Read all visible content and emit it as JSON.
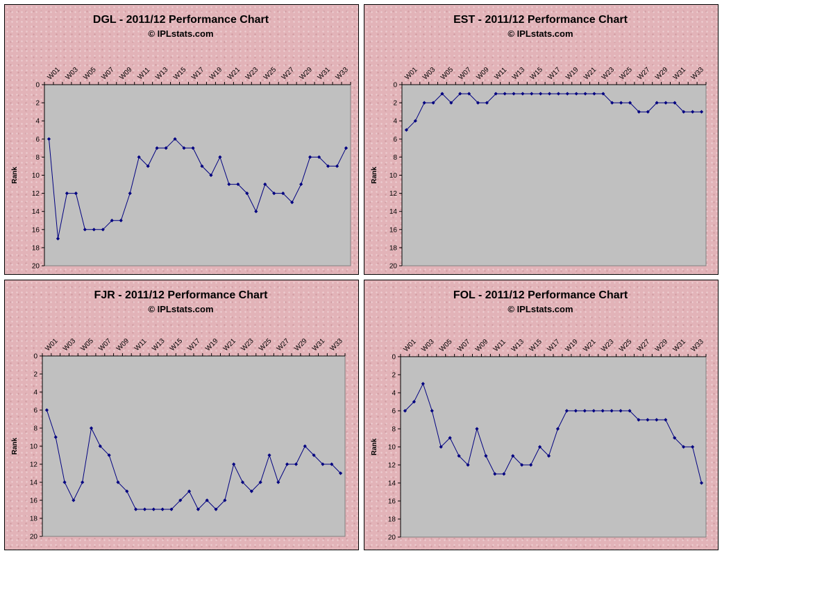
{
  "chart_data": [
    {
      "type": "line",
      "title": "DGL  - 2011/12 Performance Chart",
      "subtitle": "© IPLstats.com",
      "ylabel": "Rank",
      "xlabel": "",
      "ylim": [
        0,
        20
      ],
      "y_reversed": true,
      "yticks": [
        "0",
        "2",
        "4",
        "6",
        "8",
        "10",
        "12",
        "14",
        "16",
        "18",
        "20"
      ],
      "x_tick_labels": [
        "W01",
        "W03",
        "W05",
        "W07",
        "W09",
        "W11",
        "W13",
        "W15",
        "W17",
        "W19",
        "W21",
        "W23",
        "W25",
        "W27",
        "W29",
        "W31",
        "W33"
      ],
      "x_axis_position": "top",
      "line_color": "#000080",
      "plot_area_color": "#c0c0c0",
      "values": [
        6,
        17,
        12,
        12,
        16,
        16,
        16,
        15,
        15,
        12,
        8,
        9,
        7,
        7,
        6,
        7,
        7,
        9,
        10,
        8,
        11,
        11,
        12,
        14,
        11,
        12,
        12,
        13,
        11,
        8,
        8,
        9,
        9,
        7
      ]
    },
    {
      "type": "line",
      "title": "EST  - 2011/12 Performance Chart",
      "subtitle": "© IPLstats.com",
      "ylabel": "Rank",
      "xlabel": "",
      "ylim": [
        0,
        20
      ],
      "y_reversed": true,
      "yticks": [
        "0",
        "2",
        "4",
        "6",
        "8",
        "10",
        "12",
        "14",
        "16",
        "18",
        "20"
      ],
      "x_tick_labels": [
        "W01",
        "W03",
        "W05",
        "W07",
        "W09",
        "W11",
        "W13",
        "W15",
        "W17",
        "W19",
        "W21",
        "W23",
        "W25",
        "W27",
        "W29",
        "W31",
        "W33"
      ],
      "x_axis_position": "top",
      "line_color": "#000080",
      "plot_area_color": "#c0c0c0",
      "values": [
        5,
        4,
        2,
        2,
        1,
        2,
        1,
        1,
        2,
        2,
        1,
        1,
        1,
        1,
        1,
        1,
        1,
        1,
        1,
        1,
        1,
        1,
        1,
        2,
        2,
        2,
        3,
        3,
        2,
        2,
        2,
        3,
        3,
        3
      ]
    },
    {
      "type": "line",
      "title": "FJR  - 2011/12 Performance Chart",
      "subtitle": "© IPLstats.com",
      "ylabel": "Rank",
      "xlabel": "",
      "ylim": [
        0,
        20
      ],
      "y_reversed": true,
      "yticks": [
        "0",
        "2",
        "4",
        "6",
        "8",
        "10",
        "12",
        "14",
        "16",
        "18",
        "20"
      ],
      "x_tick_labels": [
        "W01",
        "W03",
        "W05",
        "W07",
        "W09",
        "W11",
        "W13",
        "W15",
        "W17",
        "W19",
        "W21",
        "W23",
        "W25",
        "W27",
        "W29",
        "W31",
        "W33"
      ],
      "x_axis_position": "top",
      "line_color": "#000080",
      "plot_area_color": "#c0c0c0",
      "values": [
        6,
        9,
        14,
        16,
        14,
        8,
        10,
        11,
        14,
        15,
        17,
        17,
        17,
        17,
        17,
        16,
        15,
        17,
        16,
        17,
        16,
        12,
        14,
        15,
        14,
        11,
        14,
        12,
        12,
        10,
        11,
        12,
        12,
        13
      ]
    },
    {
      "type": "line",
      "title": "FOL  - 2011/12 Performance Chart",
      "subtitle": "© IPLstats.com",
      "ylabel": "Rank",
      "xlabel": "",
      "ylim": [
        0,
        20
      ],
      "y_reversed": true,
      "yticks": [
        "0",
        "2",
        "4",
        "6",
        "8",
        "10",
        "12",
        "14",
        "16",
        "18",
        "20"
      ],
      "x_tick_labels": [
        "W01",
        "W03",
        "W05",
        "W07",
        "W09",
        "W11",
        "W13",
        "W15",
        "W17",
        "W19",
        "W21",
        "W23",
        "W25",
        "W27",
        "W29",
        "W31",
        "W33"
      ],
      "x_axis_position": "top",
      "line_color": "#000080",
      "plot_area_color": "#c0c0c0",
      "values": [
        6,
        5,
        3,
        6,
        10,
        9,
        11,
        12,
        8,
        11,
        13,
        13,
        11,
        12,
        12,
        10,
        11,
        8,
        6,
        6,
        6,
        6,
        6,
        6,
        6,
        6,
        7,
        7,
        7,
        7,
        9,
        10,
        10,
        14
      ]
    }
  ]
}
